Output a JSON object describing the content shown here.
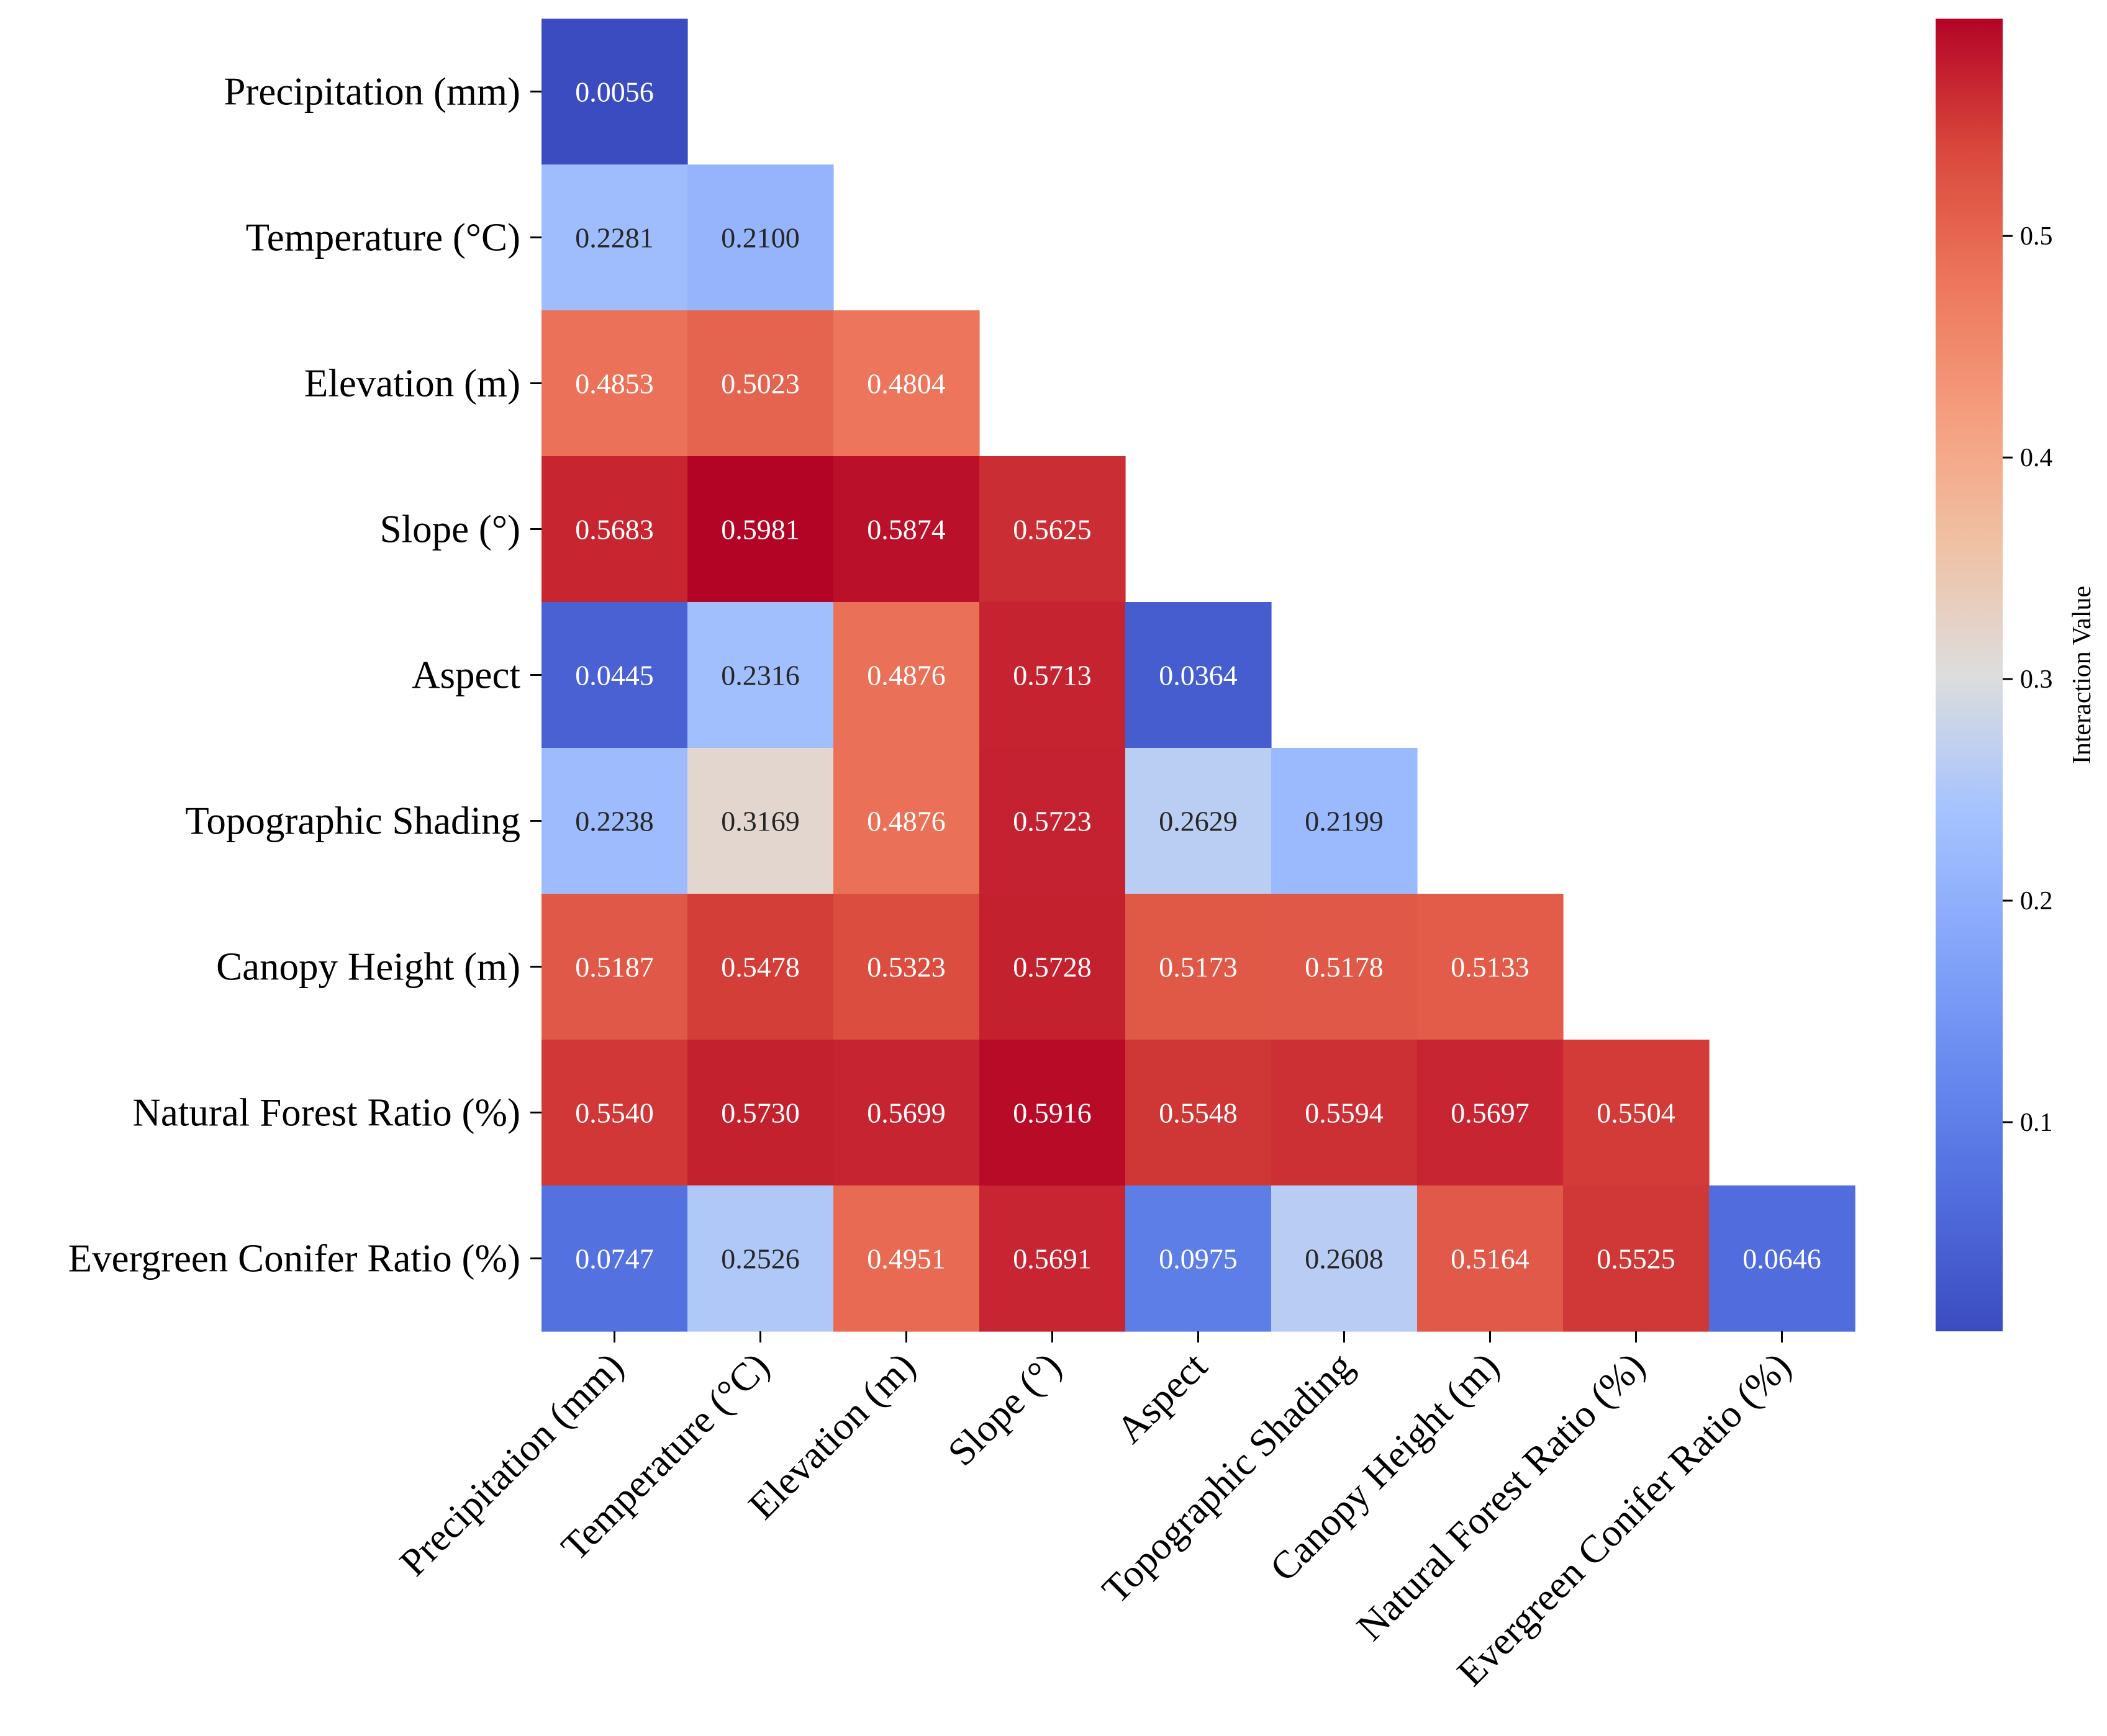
{
  "chart_data": {
    "type": "heatmap",
    "mask": "lower-triangle",
    "categories": [
      "Precipitation (mm)",
      "Temperature (°C)",
      "Elevation (m)",
      "Slope (°)",
      "Aspect",
      "Topographic Shading",
      "Canopy Height (m)",
      "Natural Forest Ratio (%)",
      "Evergreen Conifer Ratio (%)"
    ],
    "values": [
      [
        "0.0056"
      ],
      [
        "0.2281",
        "0.2100"
      ],
      [
        "0.4853",
        "0.5023",
        "0.4804"
      ],
      [
        "0.5683",
        "0.5981",
        "0.5874",
        "0.5625"
      ],
      [
        "0.0445",
        "0.2316",
        "0.4876",
        "0.5713",
        "0.0364"
      ],
      [
        "0.2238",
        "0.3169",
        "0.4876",
        "0.5723",
        "0.2629",
        "0.2199"
      ],
      [
        "0.5187",
        "0.5478",
        "0.5323",
        "0.5728",
        "0.5173",
        "0.5178",
        "0.5133"
      ],
      [
        "0.5540",
        "0.5730",
        "0.5699",
        "0.5916",
        "0.5548",
        "0.5594",
        "0.5697",
        "0.5504"
      ],
      [
        "0.0747",
        "0.2526",
        "0.4951",
        "0.5691",
        "0.0975",
        "0.2608",
        "0.5164",
        "0.5525",
        "0.0646"
      ]
    ],
    "colormap": "coolwarm",
    "vmin": 0.0056,
    "vmax": 0.5981,
    "colorbar": {
      "label": "Interaction Value",
      "ticks": [
        0.1,
        0.2,
        0.3,
        0.4,
        0.5
      ],
      "tick_labels": [
        "0.1",
        "0.2",
        "0.3",
        "0.4",
        "0.5"
      ]
    },
    "colors": {
      "low": "#3b4cc0",
      "mid": "#dddddd",
      "high": "#b40426"
    }
  }
}
